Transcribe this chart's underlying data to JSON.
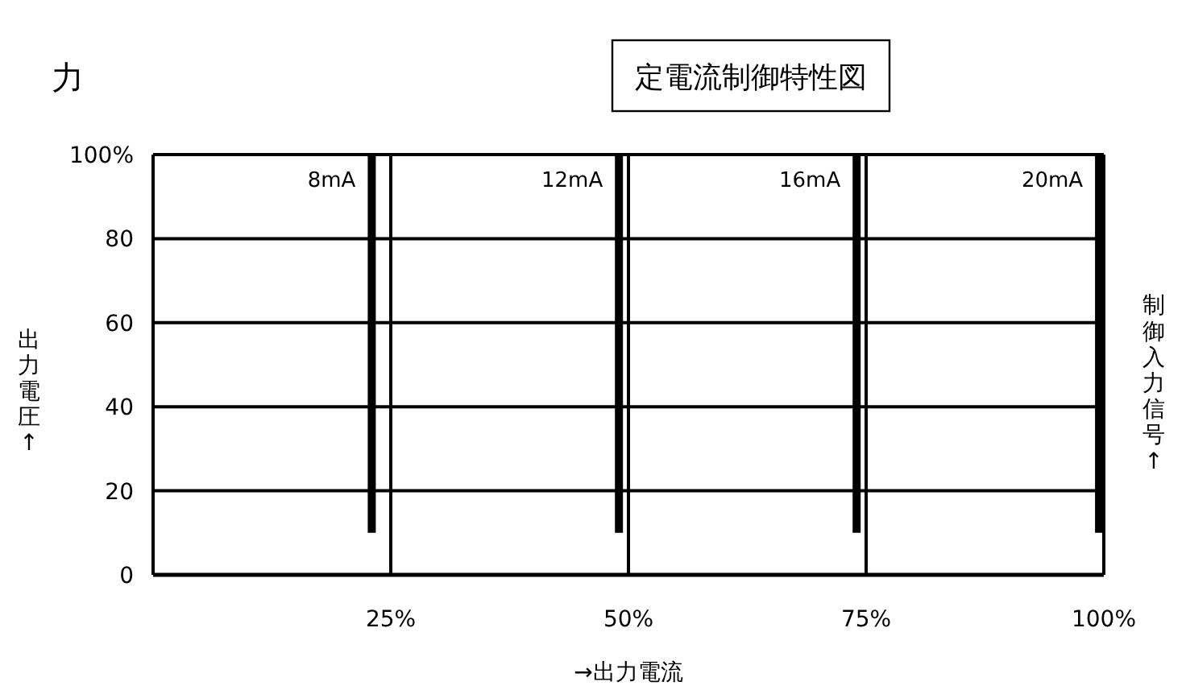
{
  "chart_data": {
    "type": "line",
    "title": "定電流制御特性図",
    "xlabel": "→出力電流",
    "ylabel": "出力電圧↑",
    "y2label": "制御入力信号↑",
    "annotations": [
      "力"
    ],
    "xlim": [
      0,
      100
    ],
    "xticks": [
      {
        "value": 25,
        "label": "25%"
      },
      {
        "value": 50,
        "label": "50%"
      },
      {
        "value": 75,
        "label": "75%"
      },
      {
        "value": 100,
        "label": "100%"
      }
    ],
    "ylim": [
      0,
      100
    ],
    "yticks": [
      0,
      20,
      40,
      60,
      80,
      {
        "value": 100,
        "label": "100%"
      }
    ],
    "grid": true,
    "marker": "none",
    "line_style": "solid",
    "series": [
      {
        "name": "8mA",
        "color": "#000000",
        "x": [
          23,
          23
        ],
        "values": [
          10,
          100
        ]
      },
      {
        "name": "12mA",
        "color": "#000000",
        "x": [
          49,
          49
        ],
        "values": [
          10,
          100
        ]
      },
      {
        "name": "16mA",
        "color": "#000000",
        "x": [
          74,
          74
        ],
        "values": [
          10,
          100
        ]
      },
      {
        "name": "20mA",
        "color": "#000000",
        "x": [
          99.5,
          99.5
        ],
        "values": [
          10,
          100
        ]
      }
    ]
  }
}
